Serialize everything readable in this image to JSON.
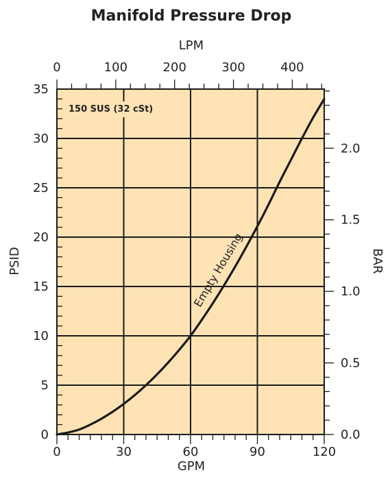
{
  "chart_data": {
    "type": "line",
    "title": "Manifold Pressure Drop",
    "xlabel": "GPM",
    "ylabel": "PSID",
    "x2label": "LPM",
    "y2label": "BAR",
    "xlim": [
      0,
      120
    ],
    "ylim": [
      0,
      35
    ],
    "x2lim": [
      0,
      454.2
    ],
    "y2lim": [
      0,
      2.413
    ],
    "x_ticks": [
      0,
      30,
      60,
      90,
      120
    ],
    "y_ticks": [
      0,
      5,
      10,
      15,
      20,
      25,
      30,
      35
    ],
    "x2_ticks": [
      0,
      100,
      200,
      300,
      400
    ],
    "y2_ticks": [
      0.0,
      0.5,
      1.0,
      1.5,
      2.0
    ],
    "y2_tick_labels": [
      "0.0",
      "0.5",
      "1.0",
      "1.5",
      "2.0"
    ],
    "grid": true,
    "background_color": "#fde3b4",
    "line_color": "#1a1a1a",
    "annotation": "150 SUS (32 cSt)",
    "series": [
      {
        "name": "Empty Housing",
        "x": [
          0,
          5,
          10,
          15,
          20,
          25,
          30,
          35,
          40,
          45,
          50,
          55,
          60,
          65,
          70,
          75,
          80,
          85,
          90,
          95,
          100,
          105,
          110,
          115,
          120
        ],
        "y": [
          0,
          0.2,
          0.5,
          1.0,
          1.6,
          2.3,
          3.1,
          4.0,
          5.0,
          6.1,
          7.3,
          8.6,
          10.0,
          11.6,
          13.3,
          15.1,
          17.0,
          19.0,
          21.1,
          23.3,
          25.6,
          27.8,
          30.0,
          32.1,
          34.0
        ]
      }
    ]
  }
}
